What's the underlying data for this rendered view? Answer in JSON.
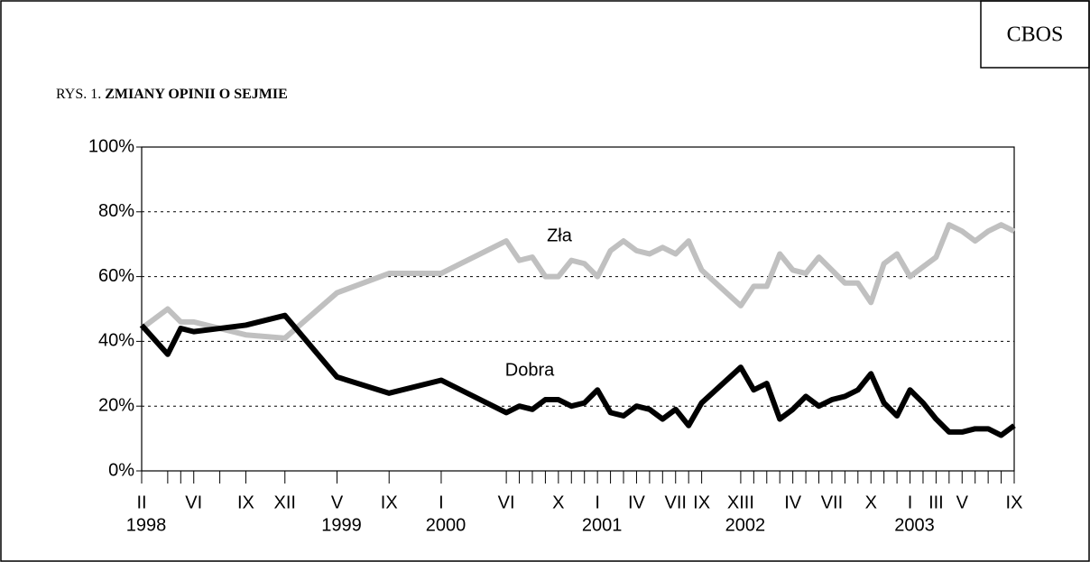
{
  "chart_data": {
    "type": "line",
    "source": "CBOS",
    "figure_label": "RYS. 1.",
    "title": "ZMIANY OPINII O SEJMIE",
    "x": [
      1,
      3,
      4,
      5,
      7,
      9,
      12,
      16,
      20,
      24,
      29,
      30,
      31,
      32,
      33,
      34,
      35,
      36,
      37,
      38,
      39,
      40,
      41,
      42,
      43,
      44,
      47,
      48,
      49,
      50,
      51,
      52,
      53,
      54,
      55,
      56,
      57,
      58,
      59,
      60,
      61,
      62,
      63,
      64,
      65,
      66,
      67,
      68
    ],
    "series": [
      {
        "name": "Zła",
        "color": "#c0c0c0",
        "values": [
          44,
          50,
          46,
          46,
          44,
          42,
          41,
          55,
          61,
          61,
          71,
          65,
          66,
          60,
          60,
          65,
          64,
          60,
          68,
          71,
          68,
          67,
          69,
          67,
          71,
          62,
          51,
          57,
          57,
          67,
          62,
          61,
          66,
          62,
          58,
          58,
          52,
          64,
          67,
          60,
          63,
          66,
          76,
          74,
          71,
          74,
          76,
          74
        ]
      },
      {
        "name": "Dobra",
        "color": "#000000",
        "values": [
          45,
          36,
          44,
          43,
          44,
          45,
          48,
          29,
          24,
          28,
          18,
          20,
          19,
          22,
          22,
          20,
          21,
          25,
          18,
          17,
          20,
          19,
          16,
          19,
          14,
          21,
          32,
          25,
          27,
          16,
          19,
          23,
          20,
          22,
          23,
          25,
          30,
          21,
          17,
          25,
          21,
          16,
          12,
          12,
          13,
          13,
          11,
          14
        ]
      }
    ],
    "xlim": [
      1,
      68
    ],
    "xticks": [
      {
        "value": 1,
        "label": "II"
      },
      {
        "value": 5,
        "label": "VI"
      },
      {
        "value": 9,
        "label": "IX"
      },
      {
        "value": 12,
        "label": "XII"
      },
      {
        "value": 16,
        "label": "V"
      },
      {
        "value": 20,
        "label": "IX"
      },
      {
        "value": 24,
        "label": "I"
      },
      {
        "value": 29,
        "label": "VI"
      },
      {
        "value": 33,
        "label": "X"
      },
      {
        "value": 36,
        "label": "I"
      },
      {
        "value": 39,
        "label": "IV"
      },
      {
        "value": 42,
        "label": "VII"
      },
      {
        "value": 44,
        "label": "IX"
      },
      {
        "value": 47,
        "label": "XIII"
      },
      {
        "value": 51,
        "label": "IV"
      },
      {
        "value": 54,
        "label": "VII"
      },
      {
        "value": 57,
        "label": "X"
      },
      {
        "value": 60,
        "label": "I"
      },
      {
        "value": 62,
        "label": "III"
      },
      {
        "value": 64,
        "label": "V"
      },
      {
        "value": 68,
        "label": "IX"
      }
    ],
    "year_ticks": [
      {
        "value": 1,
        "label": "1998"
      },
      {
        "value": 16,
        "label": "1999"
      },
      {
        "value": 24,
        "label": "2000"
      },
      {
        "value": 36,
        "label": "2001"
      },
      {
        "value": 47,
        "label": "2002"
      },
      {
        "value": 60,
        "label": "2003"
      }
    ],
    "ylim": [
      0,
      100
    ],
    "yticks": [
      {
        "value": 0,
        "label": "0%"
      },
      {
        "value": 20,
        "label": "20%"
      },
      {
        "value": 40,
        "label": "40%"
      },
      {
        "value": 60,
        "label": "60%"
      },
      {
        "value": 80,
        "label": "80%"
      },
      {
        "value": 100,
        "label": "100%"
      }
    ],
    "grid": true
  }
}
